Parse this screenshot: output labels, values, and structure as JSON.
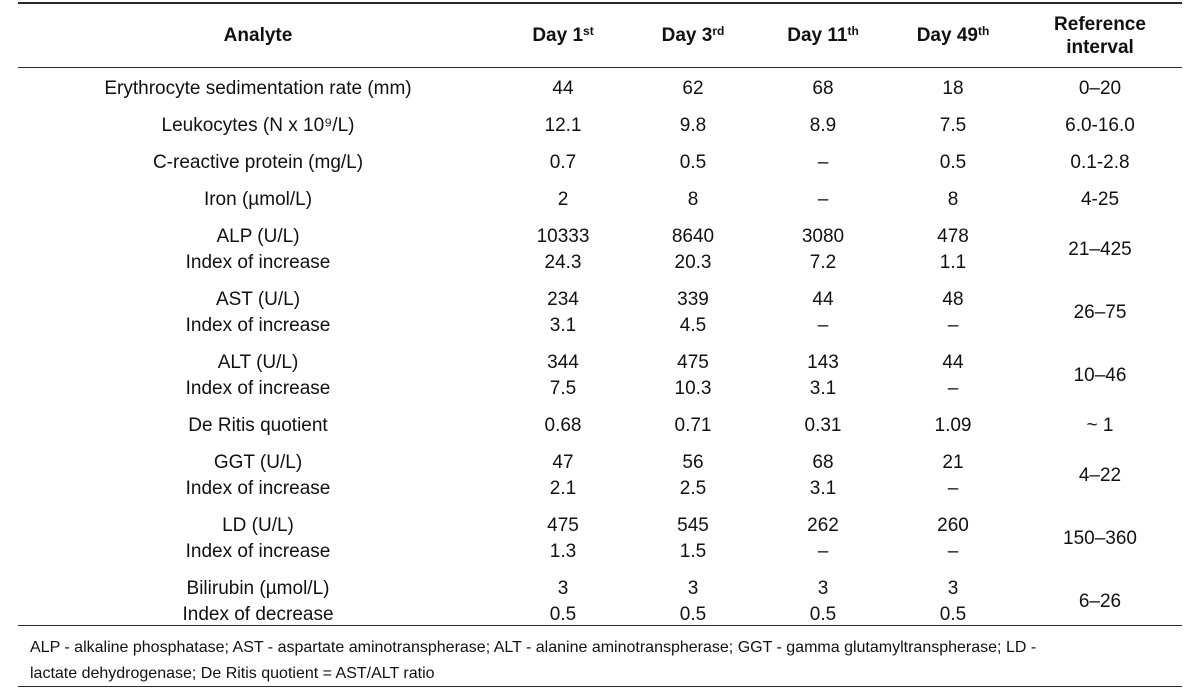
{
  "table": {
    "headers": [
      {
        "text": "Analyte",
        "sup": ""
      },
      {
        "text": "Day 1",
        "sup": "st"
      },
      {
        "text": "Day 3",
        "sup": "rd"
      },
      {
        "text": "Day 11",
        "sup": "th"
      },
      {
        "text": "Day 49",
        "sup": "th"
      },
      {
        "text": "Reference interval",
        "sup": ""
      }
    ],
    "rows": [
      {
        "analyte": [
          "Erythrocyte sedimentation rate (mm)"
        ],
        "d1": [
          "44"
        ],
        "d3": [
          "62"
        ],
        "d11": [
          "68"
        ],
        "d49": [
          "18"
        ],
        "ref": "0–20"
      },
      {
        "analyte": [
          "Leukocytes (N x 10⁹/L)"
        ],
        "d1": [
          "12.1"
        ],
        "d3": [
          "9.8"
        ],
        "d11": [
          "8.9"
        ],
        "d49": [
          "7.5"
        ],
        "ref": "6.0-16.0"
      },
      {
        "analyte": [
          "C-reactive protein (mg/L)"
        ],
        "d1": [
          "0.7"
        ],
        "d3": [
          "0.5"
        ],
        "d11": [
          "–"
        ],
        "d49": [
          "0.5"
        ],
        "ref": "0.1-2.8"
      },
      {
        "analyte": [
          "Iron (µmol/L)"
        ],
        "d1": [
          "2"
        ],
        "d3": [
          "8"
        ],
        "d11": [
          "–"
        ],
        "d49": [
          "8"
        ],
        "ref": "4-25"
      },
      {
        "analyte": [
          "ALP (U/L)",
          "Index of increase"
        ],
        "d1": [
          "10333",
          "24.3"
        ],
        "d3": [
          "8640",
          "20.3"
        ],
        "d11": [
          "3080",
          "7.2"
        ],
        "d49": [
          "478",
          "1.1"
        ],
        "ref": "21–425"
      },
      {
        "analyte": [
          "AST (U/L)",
          "Index of increase"
        ],
        "d1": [
          "234",
          "3.1"
        ],
        "d3": [
          "339",
          "4.5"
        ],
        "d11": [
          "44",
          "–"
        ],
        "d49": [
          "48",
          "–"
        ],
        "ref": "26–75"
      },
      {
        "analyte": [
          "ALT (U/L)",
          "Index of increase"
        ],
        "d1": [
          "344",
          "7.5"
        ],
        "d3": [
          "475",
          "10.3"
        ],
        "d11": [
          "143",
          "3.1"
        ],
        "d49": [
          "44",
          "–"
        ],
        "ref": "10–46"
      },
      {
        "analyte": [
          "De Ritis quotient"
        ],
        "d1": [
          "0.68"
        ],
        "d3": [
          "0.71"
        ],
        "d11": [
          "0.31"
        ],
        "d49": [
          "1.09"
        ],
        "ref": "~ 1"
      },
      {
        "analyte": [
          "GGT (U/L)",
          "Index of increase"
        ],
        "d1": [
          "47",
          "2.1"
        ],
        "d3": [
          "56",
          "2.5"
        ],
        "d11": [
          "68",
          "3.1"
        ],
        "d49": [
          "21",
          "–"
        ],
        "ref": "4–22"
      },
      {
        "analyte": [
          "LD (U/L)",
          "Index of increase"
        ],
        "d1": [
          "475",
          "1.3"
        ],
        "d3": [
          "545",
          "1.5"
        ],
        "d11": [
          "262",
          "–"
        ],
        "d49": [
          "260",
          "–"
        ],
        "ref": "150–360"
      },
      {
        "analyte": [
          "Bilirubin (µmol/L)",
          "Index of decrease"
        ],
        "d1": [
          "3",
          "0.5"
        ],
        "d3": [
          "3",
          "0.5"
        ],
        "d11": [
          "3",
          "0.5"
        ],
        "d49": [
          "3",
          "0.5"
        ],
        "ref": "6–26"
      }
    ]
  },
  "footnote": {
    "line1": "ALP - alkaline phosphatase; AST - aspartate aminotranspherase; ALT - alanine aminotranspherase; GGT - gamma glutamyltranspherase; LD -",
    "line2": "lactate dehydrogenase; De Ritis quotient = AST/ALT ratio"
  }
}
